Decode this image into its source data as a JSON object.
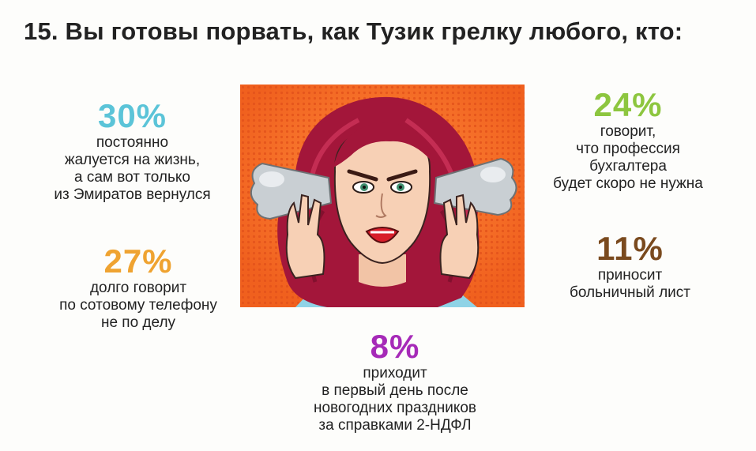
{
  "title": "15. Вы готовы порвать, как Тузик грелку любого, кто:",
  "colors": {
    "pct30": "#5bc4d8",
    "pct27": "#efa331",
    "pct24": "#8dc63f",
    "pct11": "#7a4a1e",
    "pct8": "#a62ab8",
    "illustration_bg": "#f26522"
  },
  "stats": [
    {
      "id": "s30",
      "percent": "30%",
      "lines": [
        "постоянно",
        "жалуется на жизнь,",
        "а сам вот только",
        "из Эмиратов вернулся"
      ]
    },
    {
      "id": "s27",
      "percent": "27%",
      "lines": [
        "долго говорит",
        "по сотовому телефону",
        "не по делу"
      ]
    },
    {
      "id": "s24",
      "percent": "24%",
      "lines": [
        "говорит,",
        "что профессия",
        "бухгалтера",
        "будет скоро не нужна"
      ]
    },
    {
      "id": "s11",
      "percent": "11%",
      "lines": [
        "приносит",
        "больничный лист"
      ]
    },
    {
      "id": "s8",
      "percent": "8%",
      "lines": [
        "приходит",
        "в первый день после",
        "новогодних праздников",
        "за справками 2-НДФЛ"
      ]
    }
  ],
  "illustration": {
    "icon": "angry-woman-steam-illustration"
  }
}
